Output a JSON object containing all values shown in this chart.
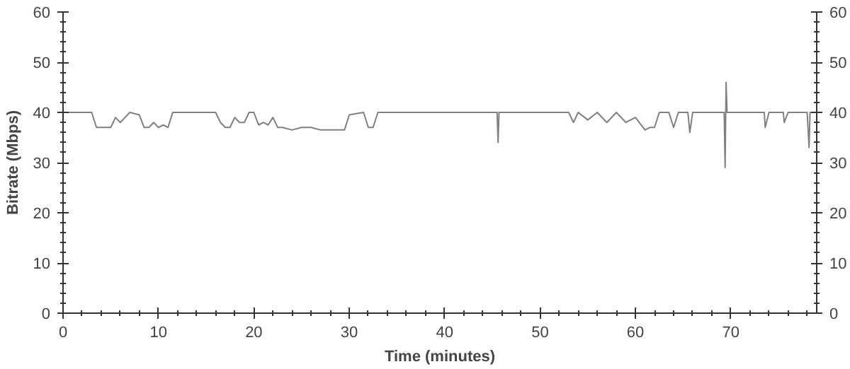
{
  "chart_data": {
    "type": "line",
    "xlabel": "Time (minutes)",
    "ylabel": "Bitrate (Mbps)",
    "xlim": [
      0,
      79
    ],
    "xticks": [
      0,
      10,
      20,
      30,
      40,
      50,
      60,
      70
    ],
    "ylim": [
      0,
      60
    ],
    "yticks": [
      0,
      10,
      20,
      30,
      40,
      50,
      60
    ],
    "y2lim": [
      0,
      60
    ],
    "y2ticks": [
      0,
      10,
      20,
      30,
      40,
      50,
      60
    ],
    "grid": false,
    "marker": "none",
    "line_style": "solid",
    "series": [
      {
        "color": "#808080",
        "x": [
          0,
          1,
          2,
          3,
          3.5,
          4,
          4.5,
          5,
          5.5,
          6,
          6.5,
          7,
          8,
          8.5,
          9,
          9.5,
          10,
          10.5,
          11,
          11.5,
          13,
          15,
          16,
          16.5,
          17,
          17.5,
          18,
          18.5,
          19,
          19.5,
          20,
          20.5,
          21,
          21.5,
          22,
          22.5,
          23,
          24,
          25,
          26,
          27,
          28,
          29.5,
          30,
          31.5,
          32,
          32.5,
          33,
          35,
          38,
          41,
          43,
          45.5,
          45.6,
          45.7,
          48,
          51,
          53,
          53.5,
          54,
          55,
          56,
          57,
          58,
          59,
          60,
          61,
          61.5,
          62,
          62.5,
          63.5,
          64,
          64.5,
          65.5,
          65.7,
          66,
          68,
          69.3,
          69.4,
          69.5,
          69.6,
          72,
          73.5,
          73.6,
          74,
          75.5,
          75.6,
          76,
          78,
          78.2,
          78.3,
          79
        ],
        "values": [
          40,
          40,
          40,
          40,
          37,
          37,
          37,
          37,
          39,
          38,
          39,
          40,
          39.5,
          37,
          37,
          38,
          37,
          37.5,
          37,
          40,
          40,
          40,
          40,
          38,
          37,
          37,
          39,
          38,
          38,
          40,
          40,
          37.5,
          38,
          37.5,
          39,
          37,
          37,
          36.5,
          37,
          37,
          36.5,
          36.5,
          36.5,
          39.5,
          40,
          37,
          37,
          40,
          40,
          40,
          40,
          40,
          40,
          34,
          40,
          40,
          40,
          40,
          38,
          40,
          38.5,
          40,
          38,
          40,
          38,
          39,
          36.5,
          37,
          37,
          40,
          40,
          37,
          40,
          40,
          36,
          40,
          40,
          40,
          29,
          46,
          40,
          40,
          40,
          37,
          40,
          40,
          38,
          40,
          40,
          33,
          40,
          40
        ]
      }
    ]
  }
}
